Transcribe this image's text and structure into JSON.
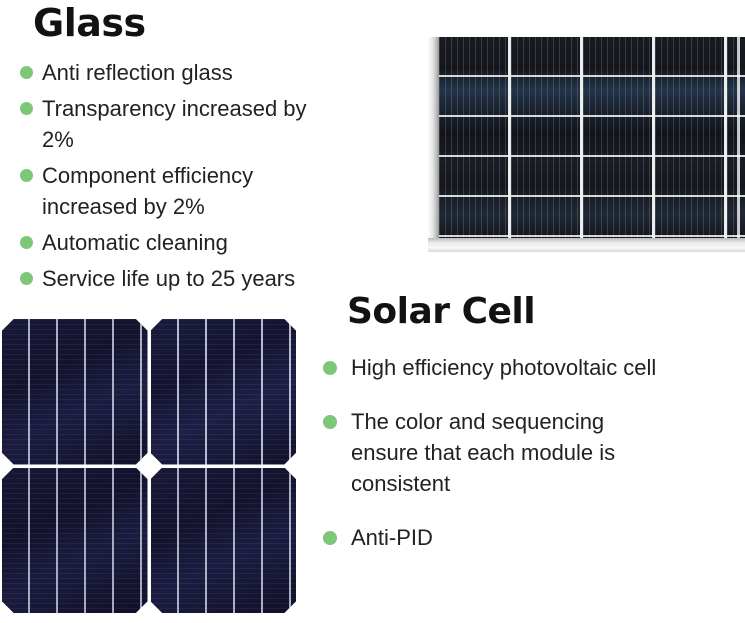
{
  "page": {
    "accent_green": "#7dc878",
    "heading_color": "#121212",
    "text_color": "#222222",
    "background": "#ffffff",
    "panel_cell_color": "#14161c",
    "panel_frame_color": "#d6d8d8",
    "cell_navy_color": "#15153a"
  },
  "glass_section": {
    "title": "Glass",
    "bullets": [
      "Anti reflection glass",
      "Transparency increased by 2%",
      "Component efficiency increased by 2%",
      "Automatic cleaning",
      "Service life up to 25 years"
    ]
  },
  "solar_cell_section": {
    "title": "Solar Cell",
    "bullets": [
      "High efficiency photovoltaic cell",
      "The color and sequencing ensure that each module is consistent",
      "Anti-PID"
    ]
  },
  "images": {
    "panel_photo_name": "framed solar panel module photo",
    "cells_photo_name": "solar cells close-up photo"
  }
}
